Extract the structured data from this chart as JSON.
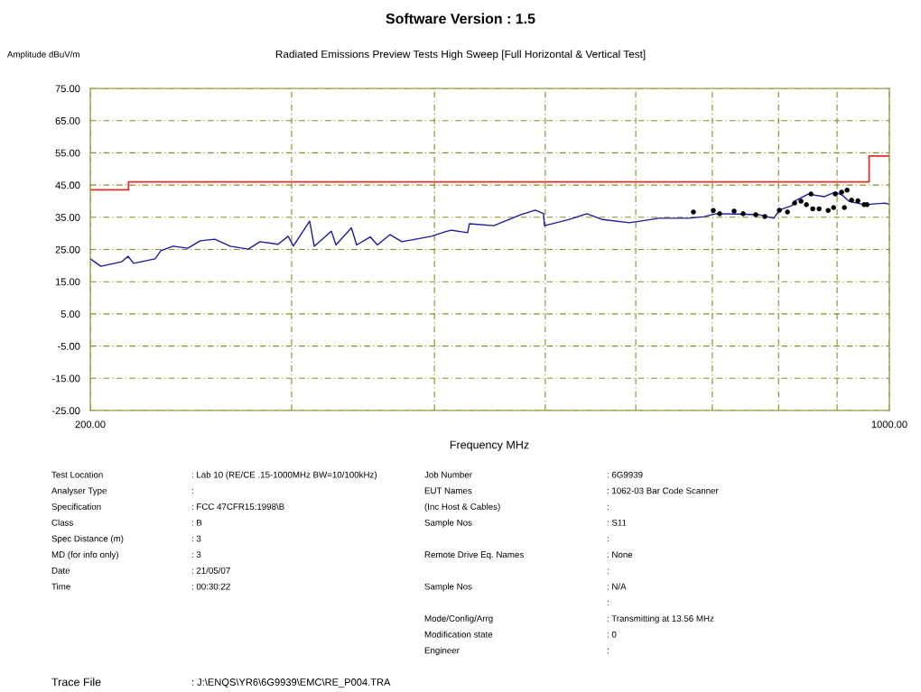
{
  "chart_data": {
    "type": "line",
    "title": "Software Version : 1.5",
    "subtitle": "Radiated Emissions Preview Tests High Sweep [Full Horizontal & Vertical Test]",
    "ylabel": "Amplitude dBuV/m",
    "xlabel": "Frequency MHz",
    "log": "x",
    "xlim": [
      200,
      1000
    ],
    "xticks": [
      {
        "value": 200,
        "label": "200.00"
      },
      {
        "value": 300,
        "label": null
      },
      {
        "value": 400,
        "label": null
      },
      {
        "value": 500,
        "label": null
      },
      {
        "value": 600,
        "label": null
      },
      {
        "value": 700,
        "label": null
      },
      {
        "value": 800,
        "label": null
      },
      {
        "value": 900,
        "label": null
      },
      {
        "value": 1000,
        "label": "1000.00"
      }
    ],
    "ylim": [
      -25,
      75
    ],
    "yticks": [
      {
        "value": -25,
        "label": "-25.00"
      },
      {
        "value": -15,
        "label": "-15.00"
      },
      {
        "value": -5,
        "label": "-5.00"
      },
      {
        "value": 5,
        "label": "5.00"
      },
      {
        "value": 15,
        "label": "15.00"
      },
      {
        "value": 25,
        "label": "25.00"
      },
      {
        "value": 35,
        "label": "35.00"
      },
      {
        "value": 45,
        "label": "45.00"
      },
      {
        "value": 55,
        "label": "55.00"
      },
      {
        "value": 65,
        "label": "65.00"
      },
      {
        "value": 75,
        "label": "75.00"
      }
    ],
    "grid": true,
    "line_style": "solid",
    "series": [
      {
        "type": "step",
        "color": "#e0302c",
        "x": [
          200,
          216,
          960,
          1000
        ],
        "values": [
          43.5,
          46,
          54,
          54
        ]
      },
      {
        "color": "#1a1aa0",
        "x": [
          200,
          204.3,
          213.1,
          215.8,
          218.2,
          227.9,
          230.5,
          236.3,
          243.4,
          249.6,
          257.0,
          265.1,
          274.9,
          281.5,
          291.9,
          297.9,
          301.1,
          311.1,
          314.0,
          325.0,
          328.0,
          338.4,
          342.0,
          351.5,
          356.6,
          365.8,
          374.6,
          397.7,
          408.7,
          413.9,
          427.6,
          429.2,
          450.8,
          476.1,
          490.2,
          498.3,
          499.2,
          524.3,
          543.8,
          560.9,
          592.3,
          629.0,
          667.9,
          688.8,
          705.3,
          736.8,
          768.3,
          792.4,
          801.2,
          821.8,
          826.3,
          849.2,
          877.4,
          896.8,
          910.0,
          921.7,
          950.5,
          991.2,
          1000
        ],
        "values": [
          22.1,
          19.8,
          21.2,
          22.9,
          20.7,
          22.1,
          24.6,
          26.0,
          25.4,
          27.7,
          28.2,
          26.0,
          25.1,
          27.4,
          26.6,
          29.1,
          26.1,
          33.8,
          26.0,
          30.7,
          26.4,
          31.7,
          26.4,
          28.9,
          26.4,
          29.6,
          27.4,
          29.1,
          30.5,
          31.0,
          30.2,
          33.0,
          32.4,
          35.8,
          37.2,
          36.1,
          32.4,
          34.3,
          36.1,
          34.3,
          33.3,
          34.7,
          34.7,
          35.2,
          36.1,
          36.0,
          35.8,
          34.7,
          37.2,
          38.6,
          40.0,
          42.2,
          41.4,
          42.8,
          41.8,
          40.0,
          38.9,
          39.4,
          39.0
        ]
      },
      {
        "type": "scatter",
        "color": "#000000",
        "marker": "circle",
        "x": [
          673.9,
          701.4,
          710.4,
          731.4,
          744.8,
          764.0,
          778.1,
          801.2,
          814.4,
          826.3,
          836.9,
          846.1,
          853.9,
          857.0,
          868.0,
          884.0,
          893.7,
          896.8,
          908.3,
          913.3,
          918.3,
          926.7,
          938.5,
          950.5,
          955.9
        ],
        "values": [
          36.6,
          37.1,
          36.1,
          36.9,
          36.1,
          35.8,
          35.2,
          37.2,
          36.6,
          39.4,
          40.0,
          38.9,
          42.2,
          37.6,
          37.6,
          37.1,
          38.0,
          42.2,
          42.8,
          38.0,
          43.4,
          40.3,
          40.1,
          38.9,
          38.9
        ]
      }
    ],
    "annotations": [
      "Test Location",
      ": Lab 10 (RE/CE .15-1000MHz BW=10/100kHz)",
      "Analyser Type",
      ":",
      "Specification",
      ": FCC 47CFR15:1998\\B",
      "Class",
      ": B",
      "Spec Distance (m)",
      ": 3",
      "MD (for info only)",
      ": 3",
      "Date",
      ": 21/05/07",
      "Time",
      ": 00:30:22",
      "Job Number",
      ": 6G9939",
      "EUT Names",
      ": 1062-03 Bar Code Scanner",
      "(Inc Host & Cables)",
      ":",
      "Sample Nos",
      ": S11",
      ":",
      "Remote Drive Eq. Names",
      ": None",
      ":",
      "Sample Nos",
      ": N/A",
      ":",
      "Mode/Config/Arrg",
      ": Transmitting at 13.56 MHz",
      "Modification state",
      ": 0",
      "Engineer",
      ":",
      "Trace File",
      ": J:\\ENQS\\YR6\\6G9939\\EMC\\RE_P004.TRA"
    ]
  }
}
